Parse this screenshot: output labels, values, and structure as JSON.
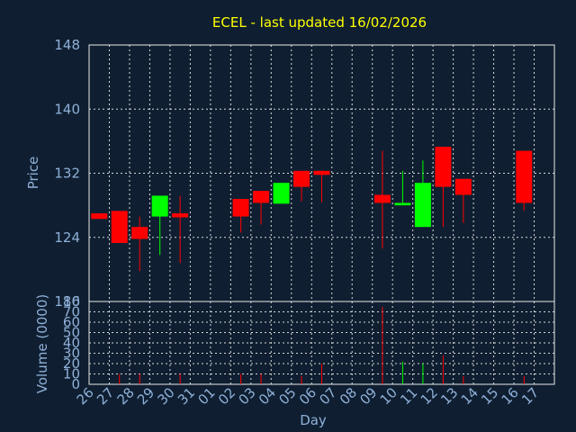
{
  "chart_data": {
    "type": "candlestick",
    "title": "ECEL - last updated 16/02/2026",
    "xlabel": "Day",
    "price_ylabel": "Price",
    "volume_ylabel": "Volume (0000)",
    "x_ticks": [
      "26",
      "27",
      "28",
      "29",
      "30",
      "31",
      "01",
      "02",
      "03",
      "04",
      "05",
      "06",
      "07",
      "08",
      "09",
      "10",
      "11",
      "12",
      "13",
      "14",
      "15",
      "16",
      "17"
    ],
    "price_ylim": [
      116,
      148
    ],
    "price_yticks": [
      148,
      140,
      132,
      124,
      116
    ],
    "price_axis_bottom_label": "80",
    "volume_ylim": [
      0,
      80
    ],
    "volume_yticks": [
      0,
      10,
      20,
      30,
      40,
      50,
      60,
      70
    ],
    "colors": {
      "up": "#00ff00",
      "down": "#ff0000",
      "title": "#ffff00",
      "axis_text": "#8fb0d8",
      "background": "#0f1f31"
    },
    "candles": [
      {
        "day": "26",
        "open": 127.0,
        "high": 127.0,
        "low": 126.3,
        "close": 126.3,
        "volume": 0
      },
      {
        "day": "27",
        "open": 127.3,
        "high": 127.3,
        "low": 123.3,
        "close": 123.3,
        "volume": 10
      },
      {
        "day": "28",
        "open": 125.3,
        "high": 126.6,
        "low": 119.8,
        "close": 123.8,
        "volume": 10
      },
      {
        "day": "29",
        "open": 126.6,
        "high": 129.2,
        "low": 121.8,
        "close": 129.2,
        "volume": 0
      },
      {
        "day": "30",
        "open": 127.0,
        "high": 129.2,
        "low": 120.8,
        "close": 126.5,
        "volume": 10
      },
      {
        "day": "02",
        "open": 128.8,
        "high": 128.8,
        "low": 124.6,
        "close": 126.6,
        "volume": 10
      },
      {
        "day": "03",
        "open": 129.8,
        "high": 129.8,
        "low": 125.6,
        "close": 128.3,
        "volume": 10
      },
      {
        "day": "04",
        "open": 128.2,
        "high": 130.8,
        "low": 128.2,
        "close": 130.8,
        "volume": 0
      },
      {
        "day": "05",
        "open": 132.3,
        "high": 132.3,
        "low": 128.5,
        "close": 130.3,
        "volume": 8
      },
      {
        "day": "06",
        "open": 132.3,
        "high": 132.3,
        "low": 128.4,
        "close": 131.8,
        "volume": 20
      },
      {
        "day": "09",
        "open": 129.3,
        "high": 134.8,
        "low": 122.6,
        "close": 128.3,
        "volume": 75
      },
      {
        "day": "10",
        "open": 128.0,
        "high": 132.3,
        "low": 128.0,
        "close": 128.3,
        "volume": 22
      },
      {
        "day": "11",
        "open": 125.3,
        "high": 133.6,
        "low": 125.3,
        "close": 130.8,
        "volume": 20
      },
      {
        "day": "12",
        "open": 135.3,
        "high": 135.3,
        "low": 125.3,
        "close": 130.3,
        "volume": 28
      },
      {
        "day": "13",
        "open": 131.3,
        "high": 131.3,
        "low": 125.8,
        "close": 129.3,
        "volume": 8
      },
      {
        "day": "16",
        "open": 134.8,
        "high": 134.8,
        "low": 127.3,
        "close": 128.3,
        "volume": 8
      }
    ]
  }
}
